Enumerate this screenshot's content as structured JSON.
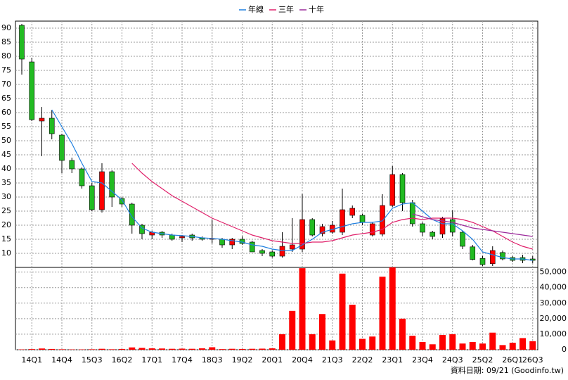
{
  "chart_data": [
    {
      "type": "candlestick",
      "categories": [
        null,
        "14Q1",
        null,
        null,
        "14Q4",
        null,
        null,
        "15Q3",
        null,
        null,
        "16Q2",
        null,
        null,
        "17Q1",
        null,
        null,
        "17Q4",
        null,
        null,
        "18Q3",
        null,
        null,
        "19Q2",
        null,
        null,
        "20Q1",
        null,
        null,
        "20Q4",
        null,
        null,
        "21Q3",
        null,
        null,
        "22Q2",
        null,
        null,
        "23Q1",
        null,
        null,
        "23Q4",
        null,
        null,
        "24Q3",
        null,
        null,
        "25Q2",
        null,
        null,
        "26Q1",
        null,
        "26Q3"
      ],
      "open": [
        91,
        78,
        57,
        58,
        52,
        43,
        40,
        34,
        25.5,
        39,
        29.5,
        27.5,
        20,
        16.5,
        17.5,
        16.5,
        15.5,
        16.5,
        15.5,
        15,
        15,
        13,
        15,
        14,
        11,
        10.5,
        9,
        11.5,
        11.5,
        22,
        17,
        17.5,
        17.5,
        23.5,
        23.5,
        16.5,
        16.8,
        27,
        38,
        28,
        20.5,
        17.5,
        16.8,
        22,
        17.5,
        12.3,
        8.2,
        6.3,
        10.3,
        8.5,
        8.5,
        8
      ],
      "high": [
        91.5,
        79.5,
        62,
        61,
        52.5,
        44,
        40.5,
        35,
        42,
        39.5,
        30,
        28,
        20.5,
        18,
        18,
        17,
        16.5,
        17,
        16,
        22,
        15.5,
        15.5,
        16,
        14.5,
        11.5,
        11,
        17.5,
        22.5,
        31,
        22.5,
        20.5,
        21.5,
        33,
        27,
        24,
        21,
        31,
        41,
        38.5,
        29,
        21,
        18,
        23,
        25.3,
        18,
        13,
        9,
        12.5,
        11,
        9,
        9.5,
        9
      ],
      "low": [
        73.5,
        57,
        44.5,
        50.5,
        38.5,
        38.5,
        33,
        25,
        24.5,
        26.5,
        26.5,
        17,
        15,
        15,
        15.5,
        14.5,
        14,
        14.5,
        14.5,
        13.5,
        12,
        11.5,
        13,
        10.5,
        9,
        8.5,
        8.5,
        10.5,
        10.5,
        16,
        16,
        17,
        16.5,
        22.5,
        20,
        16,
        16,
        26.5,
        25,
        19.5,
        16,
        15,
        15.5,
        16,
        11.5,
        7.5,
        5.5,
        5.5,
        7.5,
        7,
        6.5,
        6.5
      ],
      "close": [
        79,
        57.5,
        58,
        52.5,
        43,
        40,
        34,
        25.5,
        39,
        30,
        27.5,
        20,
        17,
        17.5,
        16.5,
        15,
        16,
        15.5,
        15,
        15.3,
        13,
        15,
        13.5,
        10.5,
        10,
        9,
        12.5,
        13,
        22,
        16.5,
        19.5,
        20,
        25.5,
        26,
        21,
        20.5,
        27,
        38,
        28,
        20.5,
        17.5,
        16,
        22.3,
        17.5,
        12.5,
        7.8,
        6,
        11,
        8,
        7.5,
        7.5,
        7.5
      ],
      "up_color": "#ff0000",
      "down_color": "#22bb22",
      "series": [
        {
          "name": "年線",
          "color": "#1e7fe0",
          "values": [
            null,
            null,
            null,
            61,
            55,
            49,
            42,
            35.5,
            35,
            32,
            29,
            23,
            19,
            17.5,
            17,
            16.5,
            16.3,
            16,
            15.5,
            15.3,
            15,
            14.5,
            14,
            13,
            12.5,
            11.5,
            11,
            11,
            13,
            15,
            17.5,
            18.5,
            19.5,
            20.5,
            21,
            21,
            21.5,
            26,
            27.5,
            28,
            25,
            22,
            20.5,
            20.5,
            18,
            15,
            10.5,
            9.5,
            8.5,
            8,
            8,
            7.5
          ]
        },
        {
          "name": "三年",
          "color": "#e0206a",
          "values": [
            null,
            null,
            null,
            null,
            null,
            null,
            null,
            null,
            null,
            null,
            null,
            42,
            38.5,
            35.5,
            33,
            30.5,
            28.5,
            26.5,
            24.5,
            22.5,
            21,
            19.5,
            18,
            16.5,
            15.5,
            14.5,
            14,
            13.5,
            13.5,
            14,
            14,
            14.5,
            15.5,
            16.5,
            17,
            17.5,
            18.5,
            21,
            22,
            22.5,
            22,
            22.5,
            22.5,
            22.5,
            22,
            21,
            19.5,
            18,
            16,
            14,
            12.5,
            11.5
          ]
        },
        {
          "name": "十年",
          "color": "#9b2a9b",
          "values": [
            null,
            null,
            null,
            null,
            null,
            null,
            null,
            null,
            null,
            null,
            null,
            null,
            null,
            null,
            null,
            null,
            null,
            null,
            null,
            null,
            null,
            null,
            null,
            null,
            null,
            null,
            null,
            null,
            null,
            null,
            null,
            null,
            null,
            null,
            null,
            null,
            null,
            null,
            null,
            24,
            23,
            22,
            21.5,
            21,
            20,
            19,
            18.5,
            18,
            17.5,
            17,
            16.5,
            16
          ]
        }
      ],
      "ylim": [
        5,
        92.5
      ],
      "yticks": [
        10,
        15,
        20,
        25,
        30,
        35,
        40,
        45,
        50,
        55,
        60,
        65,
        70,
        75,
        80,
        85,
        90
      ],
      "grid": true,
      "note": "資料日期: 09/21  (Goodinfo.tw)"
    },
    {
      "type": "bar",
      "color": "#ff0000",
      "values": [
        200,
        400,
        800,
        500,
        300,
        200,
        200,
        300,
        600,
        300,
        500,
        1500,
        1200,
        900,
        800,
        600,
        700,
        600,
        900,
        1600,
        400,
        600,
        500,
        600,
        700,
        900,
        10000,
        25000,
        52500,
        10000,
        23000,
        6000,
        49000,
        29000,
        7000,
        8500,
        47000,
        53000,
        20000,
        9000,
        5000,
        3500,
        9500,
        10000,
        4000,
        5000,
        4000,
        11000,
        3000,
        4500,
        7500,
        5500
      ],
      "ylim": [
        0,
        53000
      ],
      "yticks": [
        {
          "value": 0,
          "label": "0"
        },
        {
          "value": 10000,
          "label": "10,000"
        },
        {
          "value": 20000,
          "label": "20,000"
        },
        {
          "value": 30000,
          "label": "30,000"
        },
        {
          "value": 40000,
          "label": "40,000"
        },
        {
          "value": 50000,
          "label": "50,000"
        }
      ],
      "grid": true
    }
  ]
}
